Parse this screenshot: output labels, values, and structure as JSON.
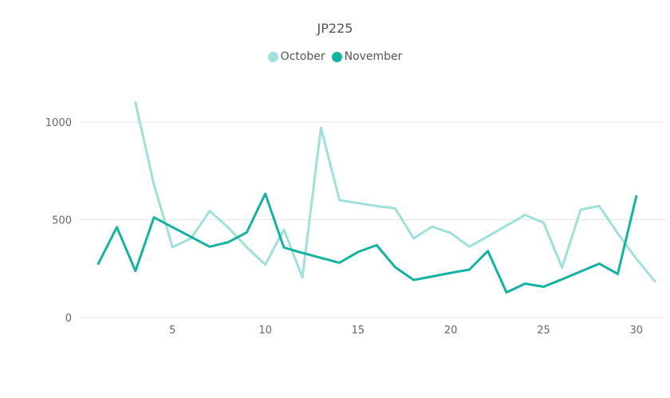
{
  "chart_data": {
    "type": "line",
    "title": "JP225",
    "xlabel": "",
    "ylabel": "",
    "x": [
      1,
      2,
      3,
      4,
      5,
      6,
      7,
      8,
      9,
      10,
      11,
      12,
      13,
      14,
      15,
      16,
      17,
      18,
      19,
      20,
      21,
      22,
      23,
      24,
      25,
      26,
      27,
      28,
      29,
      30,
      31
    ],
    "xticks": [
      5,
      10,
      15,
      20,
      25,
      30
    ],
    "yticks": [
      0,
      500,
      1000
    ],
    "xlim": [
      0,
      31.6
    ],
    "ylim": [
      0,
      1000
    ],
    "grid": true,
    "legend_position": "top",
    "series": [
      {
        "name": "October",
        "color": "#9fe1da",
        "values": [
          null,
          null,
          1100,
          680,
          360,
          405,
          545,
          460,
          360,
          270,
          450,
          205,
          970,
          600,
          585,
          570,
          558,
          405,
          465,
          432,
          362,
          415,
          470,
          525,
          485,
          255,
          552,
          570,
          430,
          300,
          185
        ]
      },
      {
        "name": "November",
        "color": "#14b3a1",
        "values": [
          275,
          462,
          238,
          512,
          462,
          412,
          362,
          385,
          435,
          633,
          358,
          330,
          305,
          280,
          335,
          370,
          257,
          192,
          210,
          228,
          245,
          340,
          128,
          173,
          157,
          195,
          235,
          275,
          223,
          620,
          null
        ]
      }
    ]
  }
}
